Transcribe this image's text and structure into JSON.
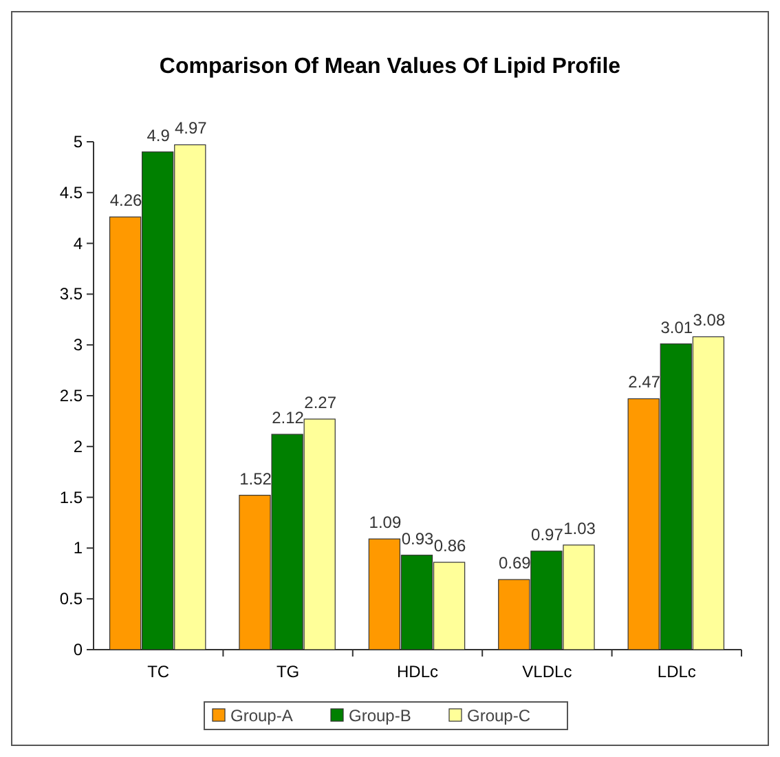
{
  "chart_data": {
    "type": "bar",
    "title": "Comparison Of Mean Values Of Lipid Profile",
    "categories": [
      "TC",
      "TG",
      "HDLc",
      "VLDLc",
      "LDLc"
    ],
    "series": [
      {
        "name": "Group-A",
        "color": "#ff9900",
        "values": [
          4.26,
          1.52,
          1.09,
          0.69,
          2.47
        ]
      },
      {
        "name": "Group-B",
        "color": "#008000",
        "values": [
          4.9,
          2.12,
          0.93,
          0.97,
          3.01
        ]
      },
      {
        "name": "Group-C",
        "color": "#ffff99",
        "values": [
          4.97,
          2.27,
          0.86,
          1.03,
          3.08
        ]
      }
    ],
    "ylim": [
      0,
      5
    ],
    "yticks": [
      0,
      0.5,
      1,
      1.5,
      2,
      2.5,
      3,
      3.5,
      4,
      4.5,
      5
    ],
    "data_labels": true,
    "legend": "bottom"
  }
}
